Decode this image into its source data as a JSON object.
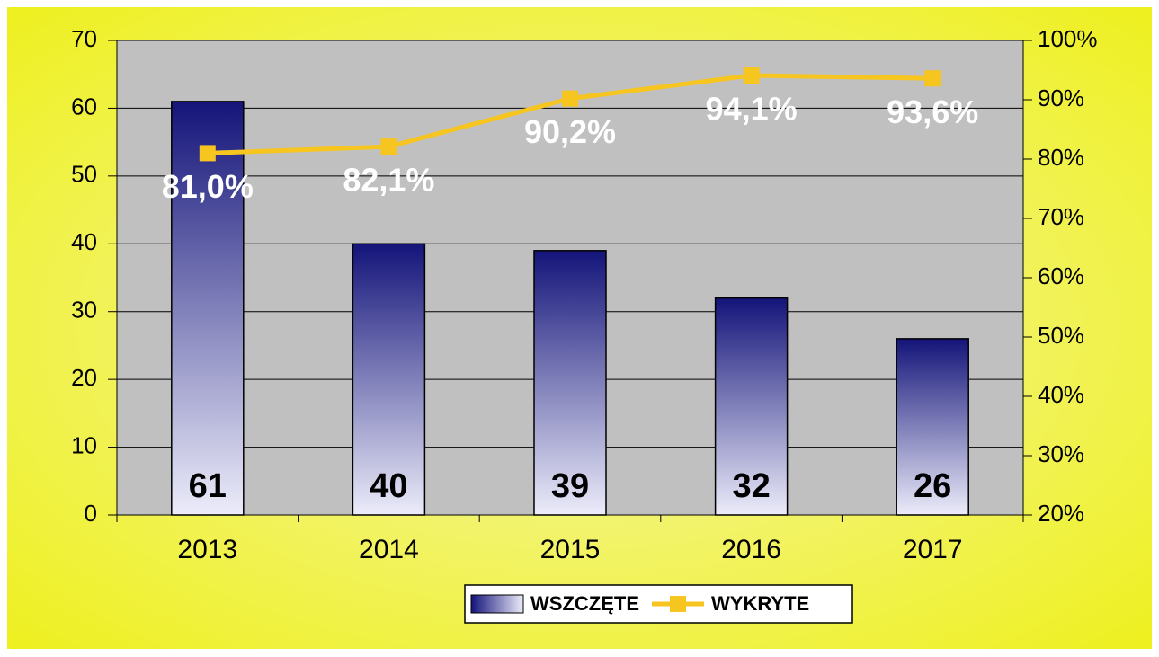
{
  "chart_data": {
    "type": "bar",
    "categories": [
      "2013",
      "2014",
      "2015",
      "2016",
      "2017"
    ],
    "series": [
      {
        "name": "WSZCZĘTE",
        "type": "bar",
        "color": "#14147a",
        "values": [
          61,
          40,
          39,
          32,
          26
        ]
      },
      {
        "name": "WYKRYTE",
        "type": "line",
        "axis": "y2",
        "color": "#f7c520",
        "values": [
          81.0,
          82.1,
          90.2,
          94.1,
          93.6
        ],
        "value_labels": [
          "81,0%",
          "82,1%",
          "90,2%",
          "94,1%",
          "93,6%"
        ]
      }
    ],
    "ylim": [
      0,
      70
    ],
    "yticks": [
      0,
      10,
      20,
      30,
      40,
      50,
      60,
      70
    ],
    "y2lim": [
      20,
      100
    ],
    "y2ticks": [
      {
        "value": 20,
        "label": "20%"
      },
      {
        "value": 30,
        "label": "30%"
      },
      {
        "value": 40,
        "label": "40%"
      },
      {
        "value": 50,
        "label": "50%"
      },
      {
        "value": 60,
        "label": "60%"
      },
      {
        "value": 70,
        "label": "70%"
      },
      {
        "value": 80,
        "label": "80%"
      },
      {
        "value": 90,
        "label": "90%"
      },
      {
        "value": 100,
        "label": "100%"
      }
    ],
    "grid": true,
    "legend": "bottom"
  }
}
